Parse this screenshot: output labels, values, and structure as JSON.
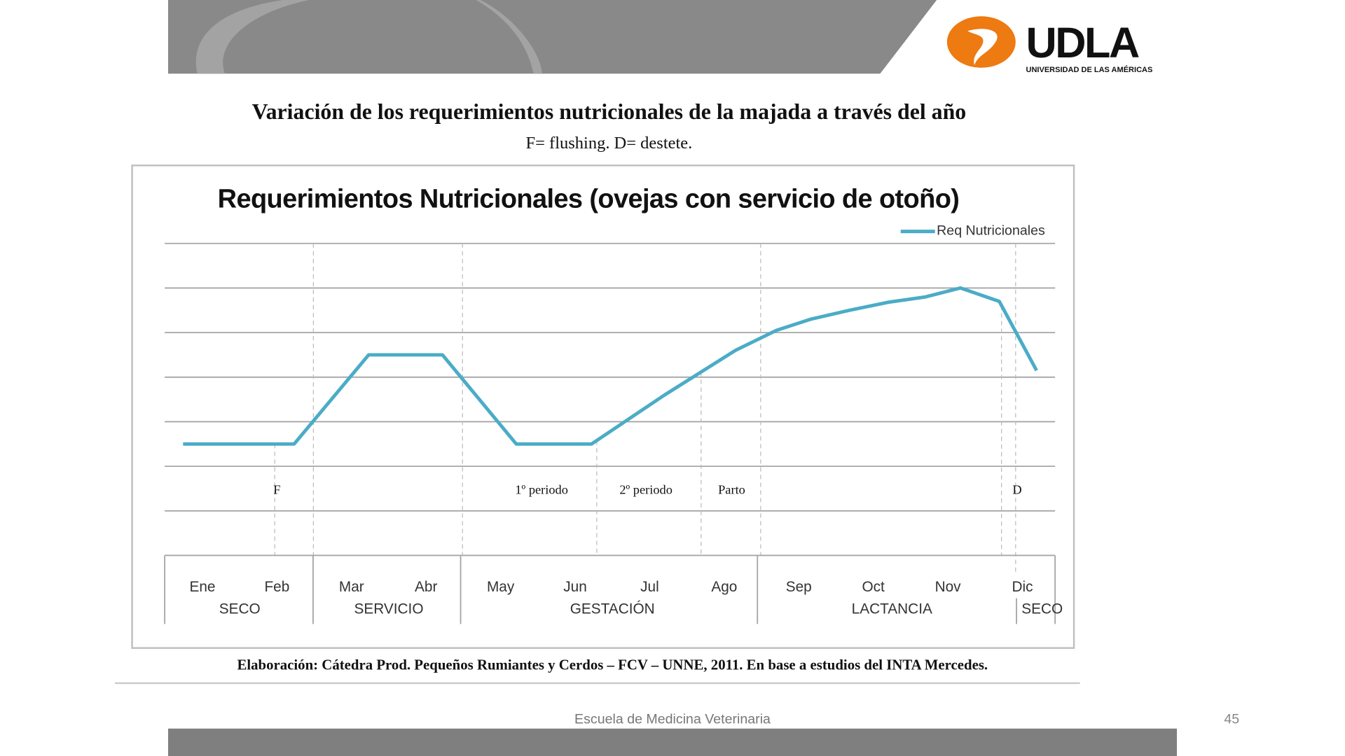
{
  "slide": {
    "title": "Variación de los requerimientos nutricionales de la majada a través del año",
    "subtitle": "F= flushing. D= destete.",
    "source": "Elaboración: Cátedra Prod. Pequeños Rumiantes y Cerdos – FCV – UNNE, 2011. En base a estudios del INTA Mercedes.",
    "footer": "Escuela de Medicina Veterinaria",
    "page_number": "45",
    "logo": {
      "text": "UDLA",
      "tagline": "UNIVERSIDAD DE LAS AMÉRICAS",
      "color": "#ee7a12"
    },
    "colors": {
      "header_bar": "#898989",
      "footer_bar": "#7f7f7f",
      "line": "#4bacc6"
    }
  },
  "chart_data": {
    "type": "line",
    "title": "Requerimientos Nutricionales (ovejas con servicio de otoño)",
    "legend": {
      "label": "Req Nutricionales",
      "position": "top-right"
    },
    "grid": true,
    "months": [
      "Ene",
      "Feb",
      "Mar",
      "Abr",
      "May",
      "Jun",
      "Jul",
      "Ago",
      "Sep",
      "Oct",
      "Nov",
      "Dic"
    ],
    "stages": [
      {
        "label": "SECO",
        "from": 0.5,
        "to": 2.5
      },
      {
        "label": "SERVICIO",
        "from": 2.5,
        "to": 4.5
      },
      {
        "label": "GESTACIÓN",
        "from": 4.5,
        "to": 8.5
      },
      {
        "label": "LACTANCIA",
        "from": 8.5,
        "to": 12.0
      },
      {
        "label": "SECO",
        "from": 12.0,
        "to": 12.53
      }
    ],
    "events": [
      {
        "label": "F",
        "x": 2.0
      },
      {
        "label": "1º periodo",
        "x": 5.55
      },
      {
        "label": "2º periodo",
        "x": 6.95
      },
      {
        "label": "Parto",
        "x": 8.1
      },
      {
        "label": "D",
        "x": 11.93
      }
    ],
    "series": [
      {
        "name": "Req Nutricionales",
        "points": [
          [
            0.74,
            2.5
          ],
          [
            2.23,
            2.5
          ],
          [
            3.23,
            4.5
          ],
          [
            4.22,
            4.5
          ],
          [
            5.21,
            2.5
          ],
          [
            6.22,
            2.5
          ],
          [
            7.2,
            3.6
          ],
          [
            8.15,
            4.6
          ],
          [
            8.7,
            5.05
          ],
          [
            9.16,
            5.3
          ],
          [
            9.68,
            5.5
          ],
          [
            10.2,
            5.68
          ],
          [
            10.7,
            5.8
          ],
          [
            11.17,
            6.0
          ],
          [
            11.69,
            5.7
          ],
          [
            12.19,
            4.15
          ]
        ]
      }
    ],
    "ylim": [
      0,
      7
    ]
  }
}
